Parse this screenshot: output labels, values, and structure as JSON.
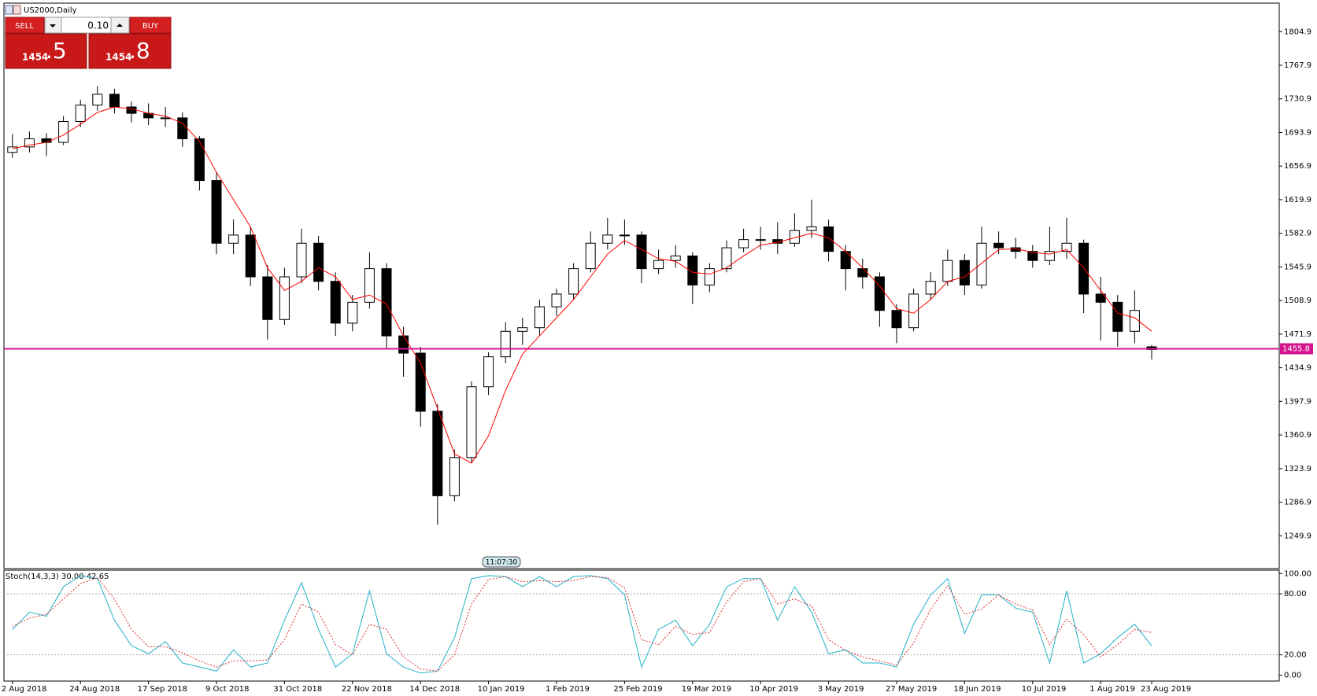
{
  "trade_panel": {
    "sell": "SELL",
    "buy": "BUY",
    "volume": "0.10",
    "bid_big": "1454",
    "bid_small": ".5",
    "ask_big": "1454",
    "ask_small": ".8"
  },
  "chart_data": [
    {
      "type": "candlestick",
      "title": "US2000,Daily",
      "candles": [
        [
          1672,
          1692,
          1666,
          1678
        ],
        [
          1678,
          1695,
          1672,
          1687
        ],
        [
          1687,
          1693,
          1668,
          1683
        ],
        [
          1683,
          1712,
          1680,
          1706
        ],
        [
          1706,
          1730,
          1700,
          1724
        ],
        [
          1724,
          1745,
          1718,
          1736
        ],
        [
          1736,
          1742,
          1715,
          1722
        ],
        [
          1722,
          1728,
          1705,
          1715
        ],
        [
          1715,
          1726,
          1702,
          1710
        ],
        [
          1710,
          1722,
          1700,
          1710
        ],
        [
          1710,
          1716,
          1678,
          1687
        ],
        [
          1687,
          1690,
          1630,
          1641
        ],
        [
          1641,
          1650,
          1560,
          1572
        ],
        [
          1572,
          1598,
          1560,
          1581
        ],
        [
          1581,
          1590,
          1525,
          1535
        ],
        [
          1535,
          1548,
          1466,
          1488
        ],
        [
          1488,
          1545,
          1482,
          1535
        ],
        [
          1535,
          1588,
          1528,
          1572
        ],
        [
          1572,
          1580,
          1520,
          1530
        ],
        [
          1530,
          1540,
          1470,
          1484
        ],
        [
          1484,
          1515,
          1475,
          1507
        ],
        [
          1507,
          1562,
          1500,
          1544
        ],
        [
          1544,
          1550,
          1455,
          1470
        ],
        [
          1470,
          1480,
          1425,
          1451
        ],
        [
          1451,
          1458,
          1370,
          1387
        ],
        [
          1387,
          1395,
          1262,
          1294
        ],
        [
          1294,
          1345,
          1288,
          1336
        ],
        [
          1336,
          1420,
          1330,
          1414
        ],
        [
          1414,
          1452,
          1405,
          1447
        ],
        [
          1447,
          1485,
          1440,
          1475
        ],
        [
          1475,
          1490,
          1460,
          1479
        ],
        [
          1479,
          1510,
          1470,
          1502
        ],
        [
          1502,
          1522,
          1492,
          1516
        ],
        [
          1516,
          1550,
          1510,
          1544
        ],
        [
          1544,
          1585,
          1540,
          1572
        ],
        [
          1572,
          1600,
          1565,
          1581
        ],
        [
          1581,
          1598,
          1570,
          1581
        ],
        [
          1581,
          1585,
          1528,
          1544
        ],
        [
          1544,
          1565,
          1538,
          1553
        ],
        [
          1553,
          1570,
          1545,
          1558
        ],
        [
          1558,
          1562,
          1505,
          1526
        ],
        [
          1526,
          1550,
          1518,
          1544
        ],
        [
          1544,
          1575,
          1540,
          1567
        ],
        [
          1567,
          1588,
          1562,
          1576
        ],
        [
          1576,
          1590,
          1565,
          1576
        ],
        [
          1576,
          1595,
          1560,
          1572
        ],
        [
          1572,
          1605,
          1568,
          1586
        ],
        [
          1586,
          1620,
          1578,
          1590
        ],
        [
          1590,
          1598,
          1552,
          1563
        ],
        [
          1563,
          1570,
          1520,
          1544
        ],
        [
          1544,
          1555,
          1522,
          1535
        ],
        [
          1535,
          1540,
          1480,
          1498
        ],
        [
          1498,
          1505,
          1462,
          1479
        ],
        [
          1479,
          1522,
          1475,
          1516
        ],
        [
          1516,
          1540,
          1510,
          1530
        ],
        [
          1530,
          1565,
          1525,
          1553
        ],
        [
          1553,
          1560,
          1515,
          1526
        ],
        [
          1526,
          1590,
          1522,
          1572
        ],
        [
          1572,
          1585,
          1560,
          1567
        ],
        [
          1567,
          1578,
          1555,
          1563
        ],
        [
          1563,
          1570,
          1545,
          1553
        ],
        [
          1553,
          1590,
          1548,
          1563
        ],
        [
          1563,
          1600,
          1555,
          1572
        ],
        [
          1572,
          1576,
          1495,
          1516
        ],
        [
          1516,
          1535,
          1465,
          1507
        ],
        [
          1507,
          1515,
          1458,
          1475
        ],
        [
          1475,
          1520,
          1462,
          1498
        ],
        [
          1458,
          1460,
          1444,
          1455
        ]
      ],
      "up_color": "#ffffff",
      "down_color": "#000000",
      "overlay": {
        "color": "#ff0000",
        "values": [
          1676,
          1680,
          1683,
          1691,
          1703,
          1716,
          1722,
          1720,
          1715,
          1712,
          1704,
          1684,
          1650,
          1620,
          1590,
          1545,
          1520,
          1530,
          1545,
          1535,
          1510,
          1515,
          1505,
          1470,
          1440,
          1390,
          1340,
          1330,
          1360,
          1410,
          1450,
          1470,
          1490,
          1510,
          1535,
          1560,
          1575,
          1565,
          1555,
          1552,
          1540,
          1538,
          1545,
          1558,
          1570,
          1573,
          1578,
          1583,
          1578,
          1563,
          1545,
          1525,
          1500,
          1495,
          1510,
          1530,
          1535,
          1550,
          1565,
          1566,
          1562,
          1560,
          1565,
          1545,
          1520,
          1495,
          1490,
          1475
        ]
      },
      "price_line": {
        "value": 1455.8,
        "color": "#d4148c"
      },
      "annotations": [
        "11:07:30"
      ],
      "xlim": [
        -0.5,
        74.5
      ],
      "xticks": [
        {
          "value": 0,
          "label": "2 Aug 2018"
        },
        {
          "value": 4,
          "label": "24 Aug 2018"
        },
        {
          "value": 8,
          "label": "17 Sep 2018"
        },
        {
          "value": 12,
          "label": "9 Oct 2018"
        },
        {
          "value": 16,
          "label": "31 Oct 2018"
        },
        {
          "value": 20,
          "label": "22 Nov 2018"
        },
        {
          "value": 24,
          "label": "14 Dec 2018"
        },
        {
          "value": 28,
          "label": "10 Jan 2019"
        },
        {
          "value": 32,
          "label": "1 Feb 2019"
        },
        {
          "value": 36,
          "label": "25 Feb 2019"
        },
        {
          "value": 40,
          "label": "19 Mar 2019"
        },
        {
          "value": 44,
          "label": "10 Apr 2019"
        },
        {
          "value": 48,
          "label": "3 May 2019"
        },
        {
          "value": 52,
          "label": "27 May 2019"
        },
        {
          "value": 56,
          "label": "18 Jun 2019"
        },
        {
          "value": 60,
          "label": "10 Jul 2019"
        },
        {
          "value": 64,
          "label": "1 Aug 2019"
        },
        {
          "value": 67,
          "label": "23 Aug 2019"
        }
      ],
      "ylim": [
        1213.8,
        1836.3
      ],
      "yticks": [
        1249.9,
        1286.9,
        1323.9,
        1360.9,
        1397.9,
        1434.9,
        1471.9,
        1508.9,
        1545.9,
        1582.9,
        1619.9,
        1656.9,
        1693.9,
        1730.9,
        1767.9,
        1804.9
      ]
    },
    {
      "type": "line",
      "title": "Stoch(14,3,3) 30.00 42.65",
      "series": [
        {
          "color": "#20b2c8",
          "style": "solid",
          "values": [
            45,
            62,
            58,
            87,
            98,
            95,
            54,
            29,
            21,
            33,
            12,
            8,
            4,
            25,
            8,
            12,
            54,
            91,
            45,
            8,
            21,
            83,
            21,
            8,
            2,
            4,
            37,
            95,
            98,
            97,
            87,
            97,
            87,
            97,
            98,
            95,
            79,
            8,
            45,
            54,
            29,
            50,
            87,
            95,
            95,
            54,
            87,
            62,
            21,
            25,
            12,
            12,
            8,
            50,
            79,
            95,
            41,
            79,
            79,
            66,
            62,
            12,
            83,
            12,
            21,
            37,
            50,
            29
          ]
        },
        {
          "color": "#e03030",
          "style": "dotted",
          "values": [
            48,
            56,
            60,
            75,
            90,
            96,
            75,
            45,
            28,
            28,
            22,
            14,
            8,
            14,
            14,
            15,
            35,
            70,
            62,
            30,
            20,
            50,
            45,
            18,
            6,
            4,
            20,
            70,
            94,
            97,
            92,
            93,
            92,
            93,
            97,
            96,
            86,
            35,
            30,
            48,
            40,
            42,
            72,
            92,
            95,
            70,
            75,
            68,
            35,
            24,
            18,
            14,
            10,
            32,
            65,
            88,
            60,
            65,
            79,
            70,
            64,
            30,
            55,
            40,
            18,
            30,
            45,
            42
          ]
        }
      ],
      "levels": [
        20,
        80
      ],
      "xlim": [
        -0.5,
        74.5
      ],
      "ylim": [
        -5.8,
        103.3
      ],
      "yticks": [
        {
          "value": 0,
          "label": "0.00"
        },
        {
          "value": 20,
          "label": "20.00"
        },
        {
          "value": 80,
          "label": "80.00"
        },
        {
          "value": 100,
          "label": "100.00"
        }
      ]
    }
  ]
}
